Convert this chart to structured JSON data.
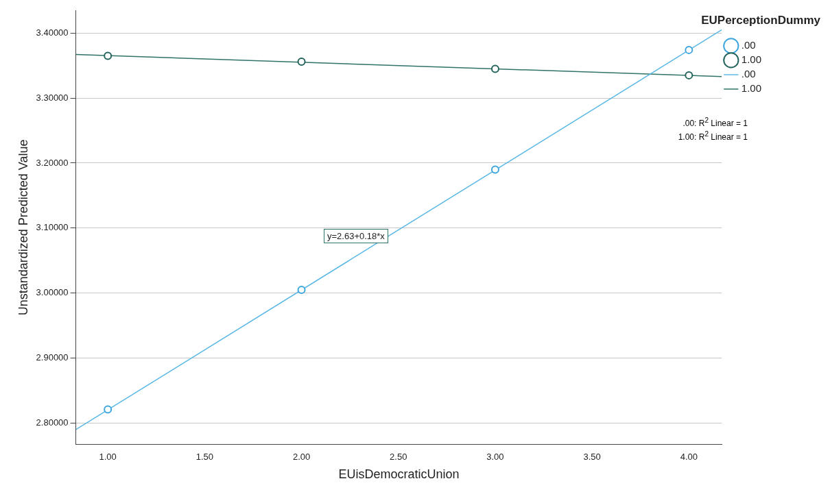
{
  "chart_data": {
    "type": "scatter",
    "xlabel": "EUisDemocraticUnion",
    "ylabel": "Unstandardized Predicted Value",
    "legend_title": "EUPerceptionDummy",
    "legend": "top right",
    "grid": "y",
    "xlim": [
      0.835,
      4.17
    ],
    "ylim": [
      2.767,
      3.435
    ],
    "xticks": [
      {
        "value": 1,
        "label": "1.00"
      },
      {
        "value": 1.5,
        "label": "1.50"
      },
      {
        "value": 2,
        "label": "2.00"
      },
      {
        "value": 2.5,
        "label": "2.50"
      },
      {
        "value": 3,
        "label": "3.00"
      },
      {
        "value": 3.5,
        "label": "3.50"
      },
      {
        "value": 4,
        "label": "4.00"
      }
    ],
    "yticks": [
      {
        "value": 2.8,
        "label": "2.80000"
      },
      {
        "value": 2.9,
        "label": "2.90000"
      },
      {
        "value": 3,
        "label": "3.00000"
      },
      {
        "value": 3.1,
        "label": "3.10000"
      },
      {
        "value": 3.2,
        "label": "3.20000"
      },
      {
        "value": 3.3,
        "label": "3.30000"
      },
      {
        "value": 3.4,
        "label": "3.40000"
      }
    ],
    "series": [
      {
        "name": ".00",
        "type": "scatter",
        "marker": "circle",
        "color": "#3ea6df",
        "x": [
          1,
          2,
          3,
          4
        ],
        "values": [
          2.821,
          3.005,
          3.19,
          3.374
        ]
      },
      {
        "name": "1.00",
        "type": "scatter",
        "marker": "circle",
        "color": "#23645c",
        "x": [
          1,
          2,
          3,
          4
        ],
        "values": [
          3.365,
          3.356,
          3.345,
          3.335
        ]
      },
      {
        "name": ".00",
        "type": "line",
        "marker": "none",
        "color": "#5ab8e6",
        "x": [
          0.835,
          4.17
        ],
        "values": [
          2.79,
          3.405
        ]
      },
      {
        "name": "1.00",
        "type": "line",
        "marker": "none",
        "color": "#2f7268",
        "x": [
          0.835,
          4.17
        ],
        "values": [
          3.367,
          3.333
        ]
      }
    ],
    "annotations": [
      "y=2.63+0.18*x",
      ".00: R$^{2}$ Linear = 1",
      "1.00: R$^{2}$ Linear = 1"
    ]
  }
}
